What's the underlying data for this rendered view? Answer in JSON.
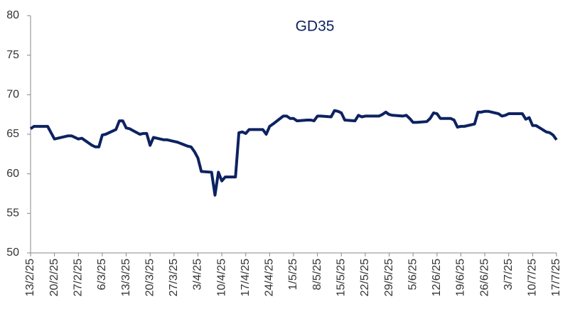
{
  "chart_data": {
    "type": "line",
    "title": "GD35",
    "x": [
      "13/2/25",
      "14/2/25",
      "17/2/25",
      "18/2/25",
      "19/2/25",
      "20/2/25",
      "21/2/25",
      "24/2/25",
      "25/2/25",
      "26/2/25",
      "27/2/25",
      "28/2/25",
      "3/3/25",
      "4/3/25",
      "5/3/25",
      "6/3/25",
      "7/3/25",
      "10/3/25",
      "11/3/25",
      "12/3/25",
      "13/3/25",
      "14/3/25",
      "17/3/25",
      "18/3/25",
      "19/3/25",
      "20/3/25",
      "21/3/25",
      "24/3/25",
      "25/3/25",
      "26/3/25",
      "27/3/25",
      "28/3/25",
      "31/3/25",
      "1/4/25",
      "2/4/25",
      "3/4/25",
      "4/4/25",
      "7/4/25",
      "8/4/25",
      "9/4/25",
      "10/4/25",
      "11/4/25",
      "14/4/25",
      "15/4/25",
      "16/4/25",
      "17/4/25",
      "18/4/25",
      "21/4/25",
      "22/4/25",
      "23/4/25",
      "24/4/25",
      "25/4/25",
      "28/4/25",
      "29/4/25",
      "30/4/25",
      "1/5/25",
      "2/5/25",
      "5/5/25",
      "6/5/25",
      "7/5/25",
      "8/5/25",
      "9/5/25",
      "12/5/25",
      "13/5/25",
      "14/5/25",
      "15/5/25",
      "16/5/25",
      "19/5/25",
      "20/5/25",
      "21/5/25",
      "22/5/25",
      "23/5/25",
      "26/5/25",
      "27/5/25",
      "28/5/25",
      "29/5/25",
      "30/5/25",
      "2/6/25",
      "3/6/25",
      "4/6/25",
      "5/6/25",
      "6/6/25",
      "9/6/25",
      "10/6/25",
      "11/6/25",
      "12/6/25",
      "13/6/25",
      "16/6/25",
      "17/6/25",
      "18/6/25",
      "19/6/25",
      "20/6/25",
      "23/6/25",
      "24/6/25",
      "25/6/25",
      "26/6/25",
      "27/6/25",
      "30/6/25",
      "1/7/25",
      "2/7/25",
      "3/7/25",
      "4/7/25",
      "7/7/25",
      "8/7/25",
      "9/7/25",
      "10/7/25",
      "11/7/25",
      "14/7/25",
      "15/7/25",
      "16/7/25",
      "17/7/25"
    ],
    "series": [
      {
        "color": "#0d2260",
        "values": [
          65.7,
          66.0,
          66.0,
          66.0,
          65.2,
          64.4,
          64.5,
          64.8,
          64.8,
          64.6,
          64.4,
          64.5,
          63.6,
          63.4,
          63.4,
          64.9,
          65.0,
          65.6,
          66.7,
          66.7,
          65.8,
          65.7,
          65.0,
          65.1,
          65.1,
          63.6,
          64.6,
          64.3,
          64.3,
          64.2,
          64.1,
          64.0,
          63.5,
          63.4,
          62.8,
          62.0,
          60.3,
          60.2,
          57.3,
          60.2,
          59.1,
          59.6,
          59.6,
          65.2,
          65.3,
          65.1,
          65.6,
          65.6,
          65.6,
          65.0,
          66.0,
          66.3,
          67.3,
          67.3,
          67.0,
          67.0,
          66.7,
          66.8,
          66.8,
          66.7,
          67.3,
          67.3,
          67.2,
          68.0,
          67.9,
          67.7,
          66.8,
          66.7,
          67.4,
          67.2,
          67.3,
          67.3,
          67.3,
          67.5,
          67.8,
          67.5,
          67.4,
          67.3,
          67.4,
          67.0,
          66.5,
          66.5,
          66.6,
          67.0,
          67.7,
          67.6,
          67.0,
          67.0,
          66.8,
          65.9,
          66.0,
          66.0,
          66.3,
          67.8,
          67.8,
          67.9,
          67.9,
          67.6,
          67.3,
          67.4,
          67.6,
          67.6,
          67.6,
          66.9,
          67.1,
          66.1,
          66.1,
          65.3,
          65.2,
          64.9,
          64.3
        ]
      }
    ],
    "xlim": [
      "13/2/25",
      "17/7/25"
    ],
    "xticks": [
      "13/2/25",
      "20/2/25",
      "27/2/25",
      "6/3/25",
      "13/3/25",
      "20/3/25",
      "27/3/25",
      "3/4/25",
      "10/4/25",
      "17/4/25",
      "24/4/25",
      "1/5/25",
      "8/5/25",
      "15/5/25",
      "22/5/25",
      "29/5/25",
      "5/6/25",
      "12/6/25",
      "19/6/25",
      "26/6/25",
      "3/7/25",
      "10/7/25",
      "17/7/25"
    ],
    "ylim": [
      50,
      80
    ],
    "yticks": [
      50,
      55,
      60,
      65,
      70,
      75,
      80
    ]
  }
}
